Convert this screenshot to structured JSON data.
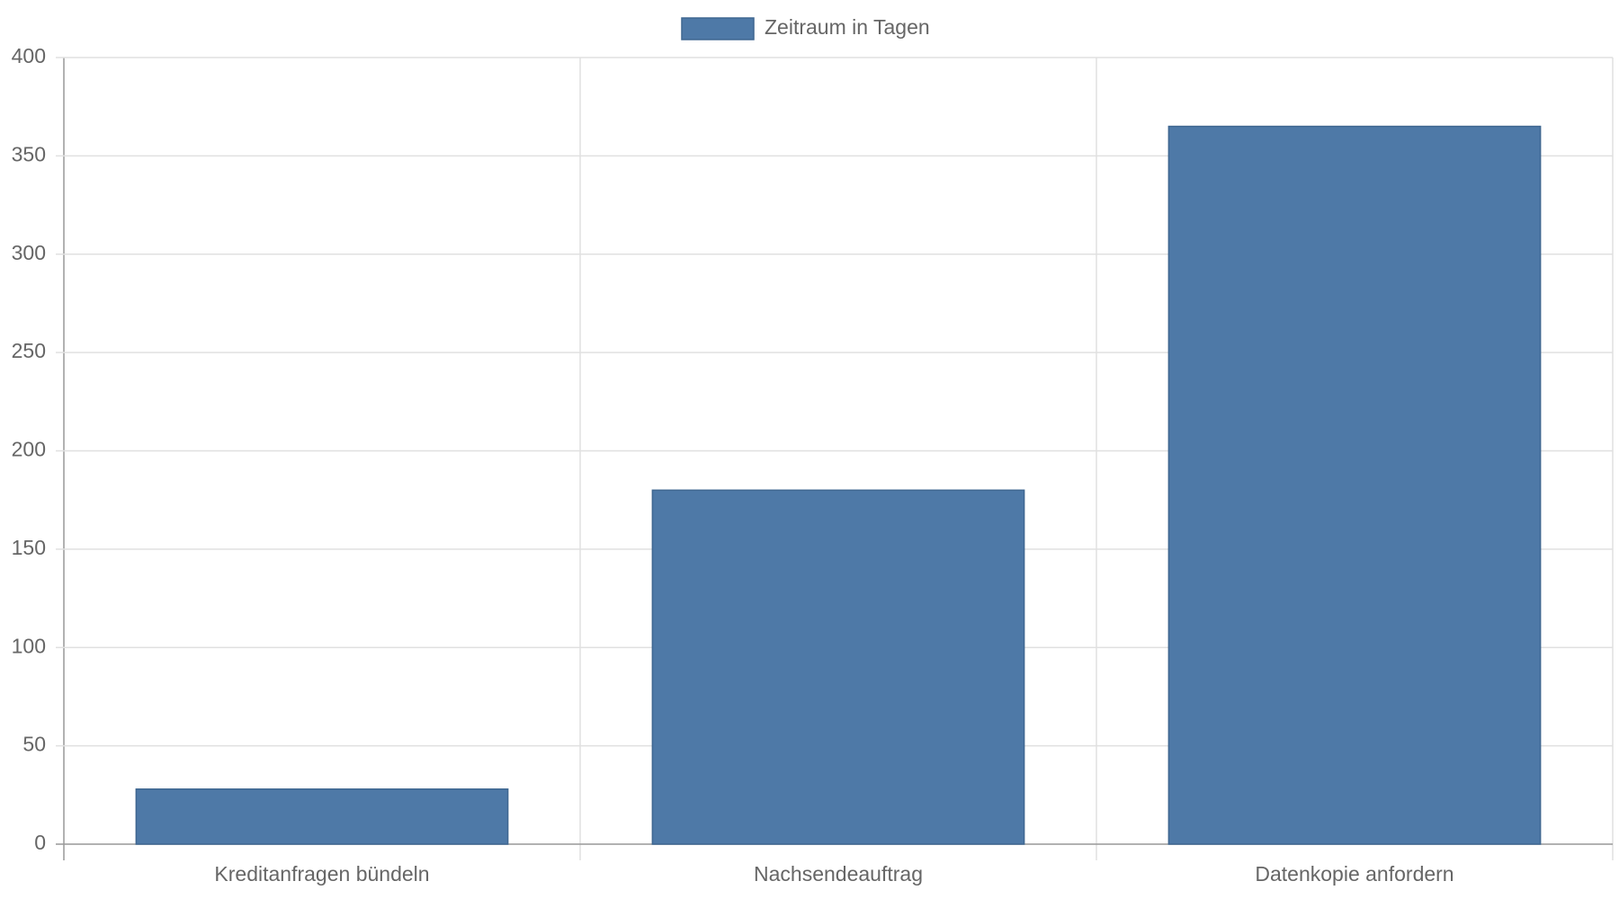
{
  "chart_data": {
    "type": "bar",
    "categories": [
      "Kreditanfragen bündeln",
      "Nachsendeauftrag",
      "Datenkopie anfordern"
    ],
    "series": [
      {
        "name": "Zeitraum in Tagen",
        "color": "#4e79a7",
        "values": [
          28,
          180,
          365
        ]
      }
    ],
    "ylim": [
      0,
      400
    ],
    "yticks": [
      0,
      50,
      100,
      150,
      200,
      250,
      300,
      350,
      400
    ],
    "grid": true,
    "legend": "top"
  }
}
